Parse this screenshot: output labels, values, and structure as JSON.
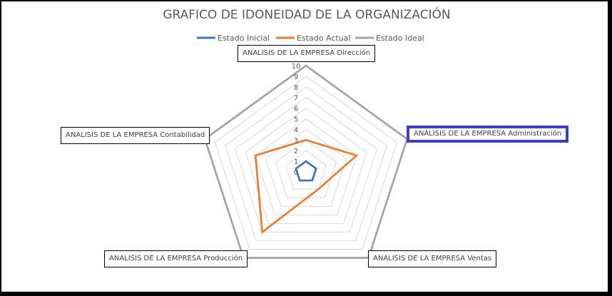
{
  "chart_data": {
    "type": "radar",
    "title": "GRAFICO DE IDONEIDAD DE LA ORGANIZACIÓN",
    "categories": [
      "ANALISIS DE LA EMPRESA Dirección",
      "ANALISIS DE LA EMPRESA Administración",
      "ANALISIS DE LA EMPRESA Ventas",
      "ANALISIS DE LA EMPRESA Producción",
      "ANALISIS DE LA EMPRESA Contabilidad"
    ],
    "selected_category": "ANALISIS DE LA EMPRESA Administración",
    "series": [
      {
        "name": "Estado Inicial",
        "color": "#4472c4",
        "values": [
          1,
          1,
          1,
          1,
          1
        ]
      },
      {
        "name": "Estado Actual",
        "color": "#ed7d31",
        "values": [
          3,
          5,
          2,
          7,
          5
        ]
      },
      {
        "name": "Estado Ideal",
        "color": "#a5a5a5",
        "values": [
          10,
          10,
          10,
          10,
          10
        ]
      }
    ],
    "ticks": [
      "0",
      "1",
      "2",
      "3",
      "4",
      "5",
      "6",
      "7",
      "8",
      "9",
      "10"
    ],
    "rlim": [
      0,
      10
    ],
    "grid": true,
    "legend_position": "top"
  }
}
